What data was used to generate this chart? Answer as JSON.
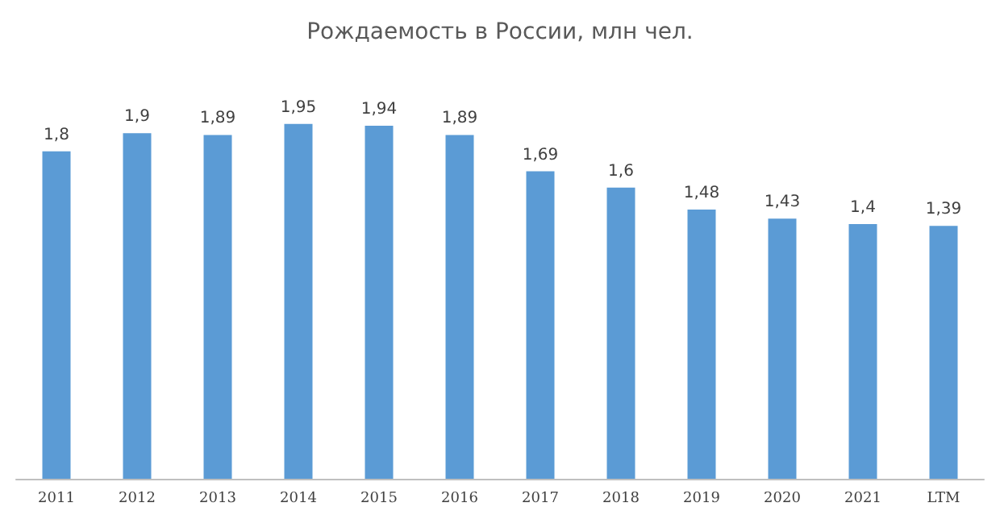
{
  "chart_data": {
    "type": "bar",
    "title": "Рождаемость в России, млн чел.",
    "categories": [
      "2011",
      "2012",
      "2013",
      "2014",
      "2015",
      "2016",
      "2017",
      "2018",
      "2019",
      "2020",
      "2021",
      "LTM"
    ],
    "values": [
      1.8,
      1.9,
      1.89,
      1.95,
      1.94,
      1.89,
      1.69,
      1.6,
      1.48,
      1.43,
      1.4,
      1.39
    ],
    "value_labels": [
      "1,8",
      "1,9",
      "1,89",
      "1,95",
      "1,94",
      "1,89",
      "1,69",
      "1,6",
      "1,48",
      "1,43",
      "1,4",
      "1,39"
    ],
    "color": "#5b9bd5"
  }
}
